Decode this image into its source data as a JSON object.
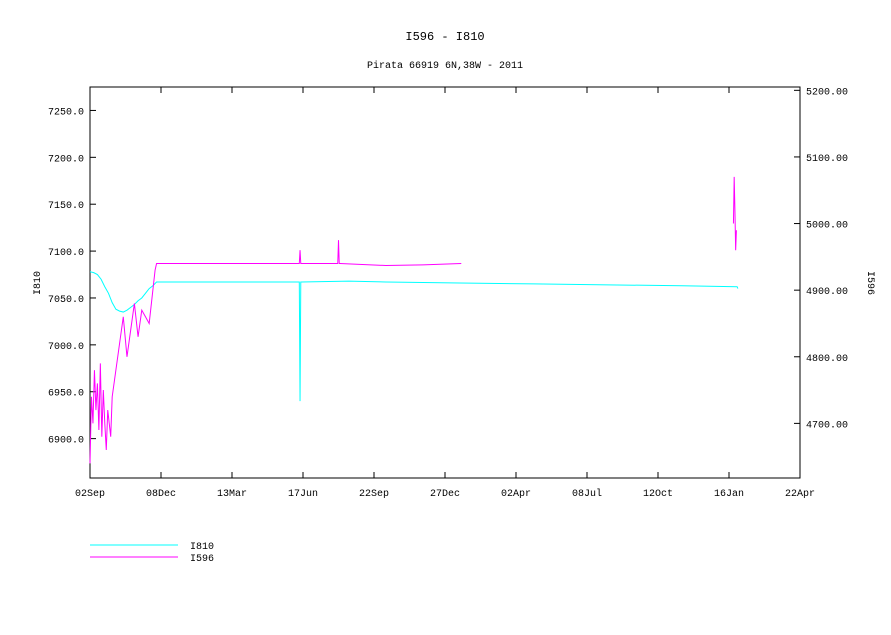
{
  "chart_data": {
    "type": "line",
    "title": "I596 - I810",
    "subtitle": "Pirata 66919 6N,38W - 2011",
    "ylabel": "I810",
    "y2label": "I596",
    "xlim": [
      0,
      960
    ],
    "xticks": [
      {
        "value": 0,
        "label": "02Sep"
      },
      {
        "value": 96,
        "label": "08Dec"
      },
      {
        "value": 192,
        "label": "13Mar"
      },
      {
        "value": 288,
        "label": "17Jun"
      },
      {
        "value": 384,
        "label": "22Sep"
      },
      {
        "value": 480,
        "label": "27Dec"
      },
      {
        "value": 576,
        "label": "02Apr"
      },
      {
        "value": 672,
        "label": "08Jul"
      },
      {
        "value": 768,
        "label": "12Oct"
      },
      {
        "value": 864,
        "label": "16Jan"
      },
      {
        "value": 960,
        "label": "22Apr"
      }
    ],
    "ylim": [
      6858,
      7275
    ],
    "yticks": [
      {
        "value": 6900,
        "label": "6900.0"
      },
      {
        "value": 6950,
        "label": "6950.0"
      },
      {
        "value": 7000,
        "label": "7000.0"
      },
      {
        "value": 7050,
        "label": "7050.0"
      },
      {
        "value": 7100,
        "label": "7100.0"
      },
      {
        "value": 7150,
        "label": "7150.0"
      },
      {
        "value": 7200,
        "label": "7200.0"
      },
      {
        "value": 7250,
        "label": "7250.0"
      }
    ],
    "y2lim": [
      4618,
      5205
    ],
    "y2ticks": [
      {
        "value": 4700,
        "label": "4700.00"
      },
      {
        "value": 4800,
        "label": "4800.00"
      },
      {
        "value": 4900,
        "label": "4900.00"
      },
      {
        "value": 5000,
        "label": "5000.00"
      },
      {
        "value": 5100,
        "label": "5100.00"
      },
      {
        "value": 5200,
        "label": "5200.00"
      }
    ],
    "series": [
      {
        "name": "I810",
        "color": "#00ffff",
        "x": [
          0,
          5,
          10,
          15,
          20,
          25,
          30,
          35,
          40,
          45,
          50,
          55,
          60,
          65,
          70,
          75,
          80,
          85,
          90,
          150,
          200,
          283,
          284,
          285,
          286,
          350,
          400,
          500,
          600,
          700,
          800,
          875,
          876
        ],
        "values": [
          7078,
          7077,
          7075,
          7070,
          7062,
          7055,
          7045,
          7038,
          7036,
          7035,
          7037,
          7040,
          7043,
          7047,
          7050,
          7055,
          7060,
          7063,
          7067,
          7067,
          7067,
          7067,
          6940,
          7067,
          7067,
          7068,
          7067,
          7066,
          7065,
          7064,
          7063,
          7062,
          7060
        ]
      },
      {
        "name": "I596",
        "color": "#ff00ff",
        "axis": "y2",
        "x": [
          0,
          2,
          4,
          6,
          8,
          10,
          12,
          14,
          16,
          18,
          20,
          22,
          24,
          26,
          28,
          30,
          35,
          40,
          45,
          50,
          55,
          60,
          65,
          70,
          75,
          80,
          85,
          88,
          90,
          150,
          200,
          283,
          284,
          285,
          286,
          335,
          336,
          337,
          338,
          400,
          450,
          502,
          503,
          870,
          871,
          872,
          873,
          874
        ],
        "values": [
          4640,
          4740,
          4700,
          4780,
          4720,
          4760,
          4690,
          4790,
          4680,
          4750,
          4700,
          4660,
          4720,
          4700,
          4680,
          4740,
          4780,
          4820,
          4860,
          4800,
          4840,
          4880,
          4830,
          4870,
          4860,
          4850,
          4900,
          4930,
          4940,
          4940,
          4940,
          4940,
          4960,
          4940,
          4940,
          4940,
          4975,
          4940,
          4940,
          4937,
          4938,
          4940,
          null,
          5000,
          5070,
          5020,
          4960,
          4990
        ]
      }
    ]
  }
}
